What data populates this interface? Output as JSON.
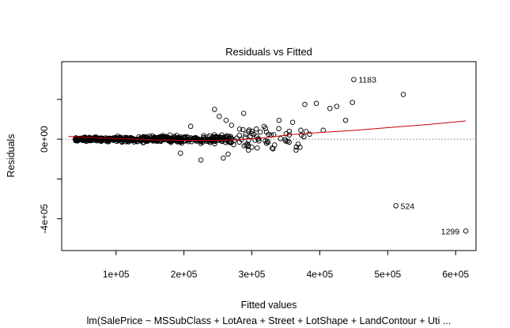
{
  "chart_data": {
    "type": "scatter",
    "title": "Residuals vs Fitted",
    "xlabel": "Fitted values",
    "ylabel": "Residuals",
    "subtitle": "lm(SalePrice ~ MSSubClass + LotArea + Street + LotShape + LandContour + Uti ...",
    "xlim": [
      20000,
      630000
    ],
    "ylim": [
      -560000,
      390000
    ],
    "xticks": [
      100000,
      200000,
      300000,
      400000,
      500000,
      600000
    ],
    "xtick_labels": [
      "1e+05",
      "2e+05",
      "3e+05",
      "4e+05",
      "5e+05",
      "6e+05"
    ],
    "yticks": [
      -400000,
      -200000,
      0,
      200000
    ],
    "ytick_labels": [
      "-4e+05",
      "",
      "0e+00",
      ""
    ],
    "reference_line_y": 0,
    "colors": {
      "points": "#000000",
      "smooth": "#cc0000",
      "reference": "#999999"
    },
    "points": [],
    "labeled_points": [
      {
        "x": 450000,
        "y": 300000,
        "label": "1183"
      },
      {
        "x": 512000,
        "y": -335000,
        "label": "524"
      },
      {
        "x": 615000,
        "y": -462000,
        "label": "1299"
      }
    ],
    "smooth_curve": [
      {
        "x": 30000,
        "y": 14000
      },
      {
        "x": 80000,
        "y": 6000
      },
      {
        "x": 120000,
        "y": 1000
      },
      {
        "x": 160000,
        "y": -4000
      },
      {
        "x": 200000,
        "y": -6000
      },
      {
        "x": 240000,
        "y": -6000
      },
      {
        "x": 280000,
        "y": -3000
      },
      {
        "x": 320000,
        "y": 8000
      },
      {
        "x": 360000,
        "y": 24000
      },
      {
        "x": 400000,
        "y": 34000
      },
      {
        "x": 450000,
        "y": 44000
      },
      {
        "x": 500000,
        "y": 58000
      },
      {
        "x": 560000,
        "y": 74000
      },
      {
        "x": 615000,
        "y": 92000
      }
    ]
  }
}
